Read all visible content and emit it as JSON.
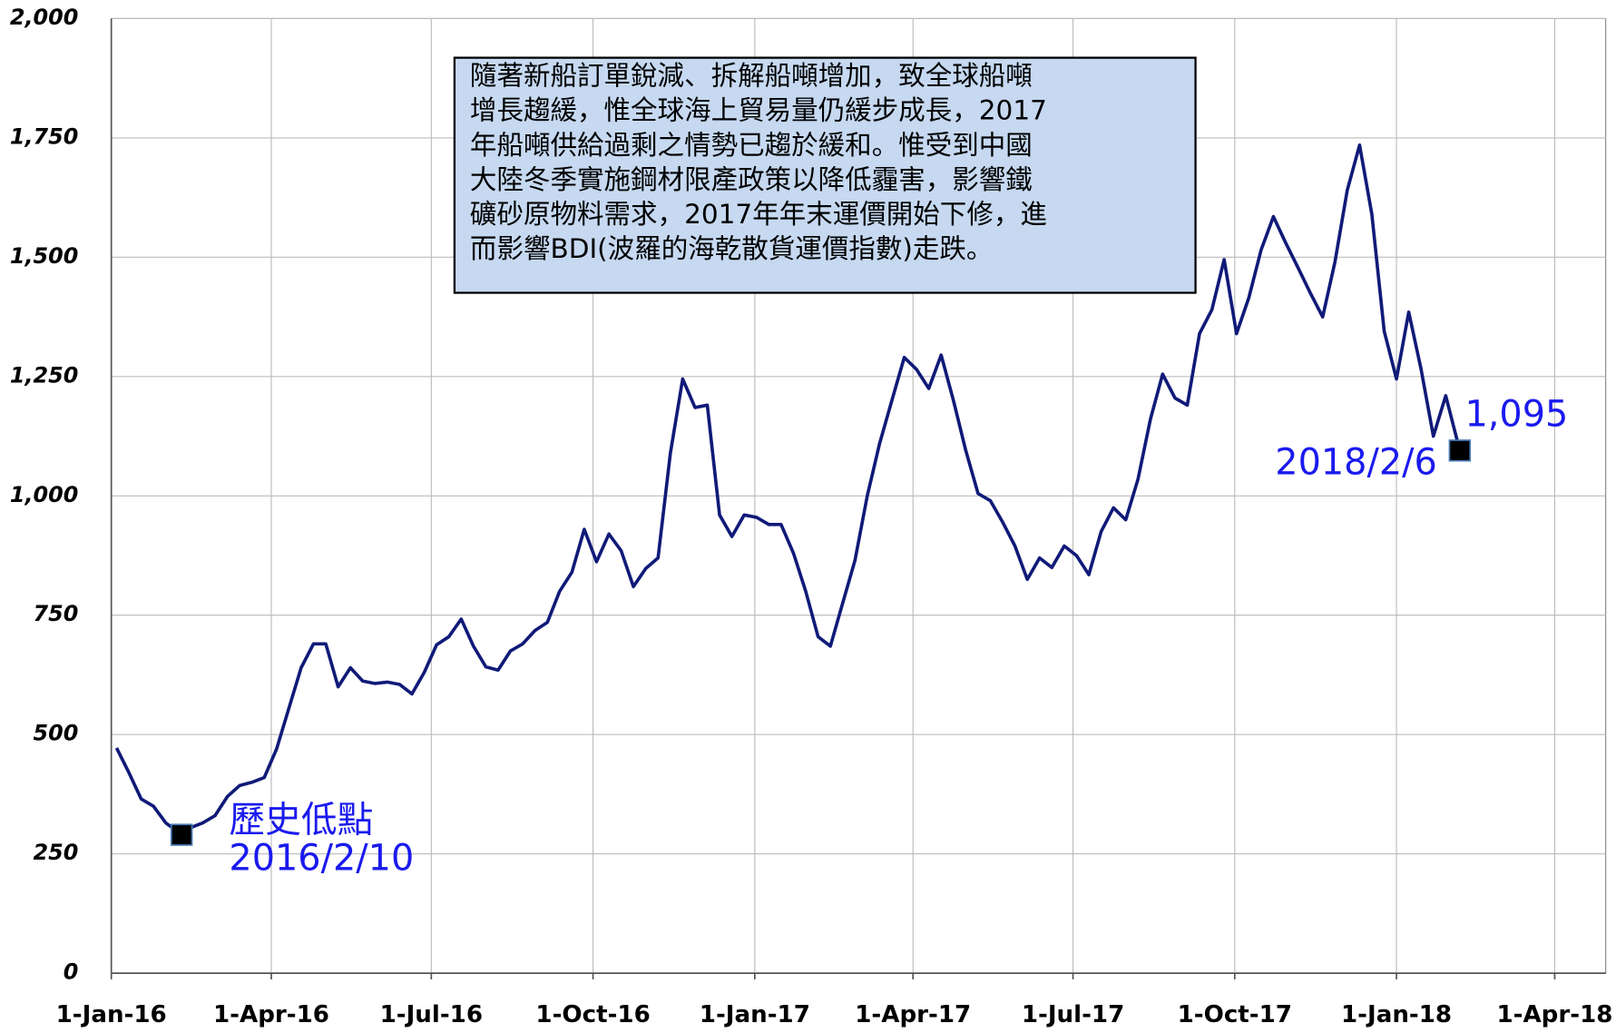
{
  "chart_data": {
    "type": "line",
    "color": "#101a78",
    "grid": true,
    "x": [
      "2016-01-04",
      "2016-01-11",
      "2016-01-18",
      "2016-01-25",
      "2016-02-01",
      "2016-02-10",
      "2016-02-15",
      "2016-02-22",
      "2016-02-29",
      "2016-03-07",
      "2016-03-14",
      "2016-03-21",
      "2016-03-28",
      "2016-04-04",
      "2016-04-11",
      "2016-04-18",
      "2016-04-25",
      "2016-05-02",
      "2016-05-09",
      "2016-05-16",
      "2016-05-23",
      "2016-05-30",
      "2016-06-06",
      "2016-06-13",
      "2016-06-20",
      "2016-06-27",
      "2016-07-04",
      "2016-07-11",
      "2016-07-18",
      "2016-07-25",
      "2016-08-01",
      "2016-08-08",
      "2016-08-15",
      "2016-08-22",
      "2016-08-29",
      "2016-09-05",
      "2016-09-12",
      "2016-09-19",
      "2016-09-26",
      "2016-10-03",
      "2016-10-10",
      "2016-10-17",
      "2016-10-24",
      "2016-10-31",
      "2016-11-07",
      "2016-11-14",
      "2016-11-21",
      "2016-11-28",
      "2016-12-05",
      "2016-12-12",
      "2016-12-19",
      "2016-12-26",
      "2017-01-02",
      "2017-01-09",
      "2017-01-16",
      "2017-01-23",
      "2017-01-30",
      "2017-02-06",
      "2017-02-13",
      "2017-02-20",
      "2017-02-27",
      "2017-03-06",
      "2017-03-13",
      "2017-03-20",
      "2017-03-27",
      "2017-04-03",
      "2017-04-10",
      "2017-04-17",
      "2017-04-24",
      "2017-05-01",
      "2017-05-08",
      "2017-05-15",
      "2017-05-22",
      "2017-05-29",
      "2017-06-05",
      "2017-06-12",
      "2017-06-19",
      "2017-06-26",
      "2017-07-03",
      "2017-07-10",
      "2017-07-17",
      "2017-07-24",
      "2017-07-31",
      "2017-08-07",
      "2017-08-14",
      "2017-08-21",
      "2017-08-28",
      "2017-09-04",
      "2017-09-11",
      "2017-09-18",
      "2017-09-25",
      "2017-10-02",
      "2017-10-09",
      "2017-10-16",
      "2017-10-23",
      "2017-10-30",
      "2017-11-06",
      "2017-11-13",
      "2017-11-20",
      "2017-11-27",
      "2017-12-04",
      "2017-12-11",
      "2017-12-18",
      "2017-12-25",
      "2018-01-01",
      "2018-01-08",
      "2018-01-15",
      "2018-01-22",
      "2018-01-29",
      "2018-02-06"
    ],
    "values": [
      472,
      420,
      365,
      350,
      315,
      290,
      305,
      315,
      330,
      370,
      393,
      400,
      410,
      470,
      555,
      640,
      690,
      690,
      600,
      640,
      612,
      607,
      610,
      605,
      585,
      630,
      688,
      705,
      742,
      685,
      642,
      635,
      675,
      690,
      718,
      735,
      800,
      840,
      930,
      862,
      920,
      885,
      810,
      848,
      870,
      1090,
      1245,
      1185,
      1190,
      960,
      915,
      960,
      955,
      940,
      940,
      880,
      800,
      705,
      685,
      775,
      865,
      1000,
      1110,
      1200,
      1290,
      1265,
      1225,
      1295,
      1200,
      1095,
      1005,
      990,
      945,
      895,
      825,
      870,
      850,
      895,
      875,
      835,
      925,
      975,
      950,
      1035,
      1160,
      1255,
      1205,
      1190,
      1340,
      1390,
      1495,
      1340,
      1415,
      1515,
      1585,
      1530,
      1478,
      1425,
      1375,
      1490,
      1640,
      1735,
      1590,
      1345,
      1245,
      1385,
      1265,
      1125,
      1210,
      1095
    ],
    "xlim": [
      "2016-01-01",
      "2018-04-30"
    ],
    "xticks": [
      {
        "value": "2016-01-01",
        "label": "1-Jan-16"
      },
      {
        "value": "2016-04-01",
        "label": "1-Apr-16"
      },
      {
        "value": "2016-07-01",
        "label": "1-Jul-16"
      },
      {
        "value": "2016-10-01",
        "label": "1-Oct-16"
      },
      {
        "value": "2017-01-01",
        "label": "1-Jan-17"
      },
      {
        "value": "2017-04-01",
        "label": "1-Apr-17"
      },
      {
        "value": "2017-07-01",
        "label": "1-Jul-17"
      },
      {
        "value": "2017-10-01",
        "label": "1-Oct-17"
      },
      {
        "value": "2018-01-01",
        "label": "1-Jan-18"
      },
      {
        "value": "2018-04-01",
        "label": "1-Apr-18"
      }
    ],
    "ylim": [
      0,
      2000
    ],
    "yticks": [
      0,
      250,
      500,
      750,
      {
        "value": 1000,
        "label": "1,000"
      },
      {
        "value": 1250,
        "label": "1,250"
      },
      {
        "value": 1500,
        "label": "1,500"
      },
      {
        "value": 1750,
        "label": "1,750"
      },
      {
        "value": 2000,
        "label": "2,000"
      }
    ],
    "note": [
      "隨著新船訂單銳減、拆解船噸增加，致全球船噸",
      "增長趨緩，惟全球海上貿易量仍緩步成長，2017",
      "年船噸供給過剩之情勢已趨於緩和。惟受到中國",
      "大陸冬季實施鋼材限產政策以降低霾害，影響鐵",
      "礦砂原物料需求，2017年年末運價開始下修，進",
      "而影響BDI(波羅的海乾散貨運價指數)走跌。"
    ],
    "annotations": [
      {
        "label": "歷史低點",
        "date": "2016/2/10"
      },
      {
        "date": "2018/2/6",
        "value": "1,095"
      }
    ]
  }
}
